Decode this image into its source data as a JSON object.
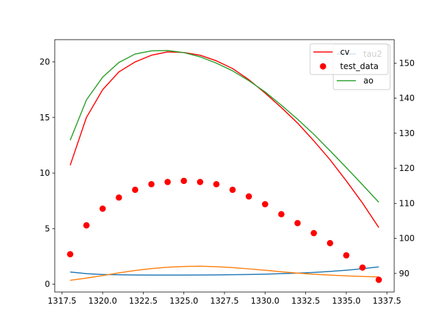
{
  "chart_data": {
    "type": "line",
    "x": [
      1318,
      1319,
      1320,
      1321,
      1322,
      1323,
      1324,
      1325,
      1326,
      1327,
      1328,
      1329,
      1330,
      1331,
      1332,
      1333,
      1334,
      1335,
      1336,
      1337
    ],
    "xlim": [
      1317.05,
      1337.95
    ],
    "xticks": [
      "1317.5",
      "1320.0",
      "1322.5",
      "1325.0",
      "1327.5",
      "1330.0",
      "1332.5",
      "1335.0",
      "1337.5"
    ],
    "xtick_values": [
      1317.5,
      1320.0,
      1322.5,
      1325.0,
      1327.5,
      1330.0,
      1332.5,
      1335.0,
      1337.5
    ],
    "ylim_left": [
      -0.7,
      22.0
    ],
    "yticks_left": [
      "0",
      "5",
      "10",
      "15",
      "20"
    ],
    "ylim_right": [
      84.7,
      156.7
    ],
    "yticks_right": [
      "90",
      "100",
      "110",
      "120",
      "130",
      "140",
      "150"
    ],
    "grid": false,
    "legend_placement": "top-right",
    "series": [
      {
        "name": "",
        "axis": "left",
        "kind": "line",
        "color": "#1f77b4",
        "values": [
          1.1,
          0.95,
          0.88,
          0.85,
          0.83,
          0.82,
          0.82,
          0.82,
          0.83,
          0.84,
          0.86,
          0.88,
          0.91,
          0.95,
          1.0,
          1.06,
          1.15,
          1.26,
          1.4,
          1.56
        ]
      },
      {
        "name": "",
        "axis": "left",
        "kind": "line",
        "color": "#ff7f0e",
        "values": [
          0.35,
          0.55,
          0.78,
          1.02,
          1.24,
          1.41,
          1.53,
          1.6,
          1.62,
          1.58,
          1.5,
          1.38,
          1.26,
          1.12,
          1.0,
          0.9,
          0.82,
          0.75,
          0.7,
          0.66
        ]
      },
      {
        "name": "cv",
        "axis": "left",
        "kind": "line",
        "color": "#ff0000",
        "values": [
          10.7,
          15.0,
          17.5,
          19.1,
          20.0,
          20.6,
          20.9,
          20.85,
          20.6,
          20.1,
          19.4,
          18.4,
          17.2,
          15.9,
          14.5,
          12.9,
          11.2,
          9.3,
          7.3,
          5.1
        ]
      },
      {
        "name": "test_data",
        "axis": "left",
        "kind": "scatter",
        "color": "#ff0000",
        "values": [
          2.7,
          5.3,
          6.8,
          7.8,
          8.5,
          9.0,
          9.2,
          9.3,
          9.2,
          9.0,
          8.5,
          7.9,
          7.2,
          6.3,
          5.5,
          4.6,
          3.7,
          2.6,
          1.5,
          0.4
        ]
      },
      {
        "name": "ao",
        "axis": "right",
        "kind": "line",
        "color": "#2ca02c",
        "values": [
          128.0,
          139.5,
          146.0,
          150.2,
          152.6,
          153.5,
          153.6,
          153.0,
          151.8,
          150.0,
          147.8,
          145.0,
          141.8,
          138.0,
          134.0,
          129.7,
          125.0,
          120.2,
          115.3,
          110.3
        ]
      }
    ],
    "legend_left": [
      "cv",
      "test_data"
    ],
    "legend_right": [
      "tau2",
      "ao"
    ],
    "legend_left_colors": [
      "#ff0000",
      "#ff0000"
    ],
    "legend_right_colors": [
      "#1f77b4",
      "#2ca02c"
    ]
  }
}
